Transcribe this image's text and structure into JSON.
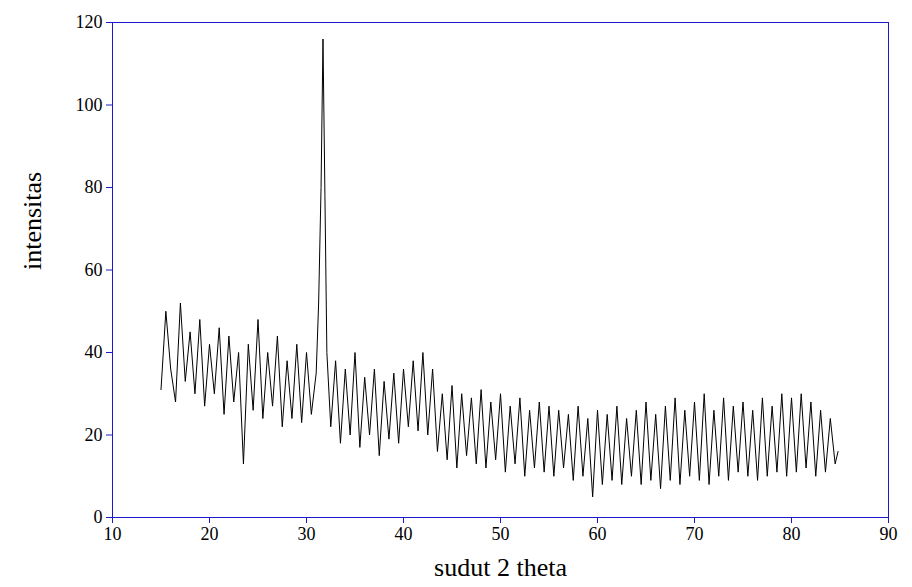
{
  "chart_data": {
    "type": "line",
    "xlabel": "sudut 2 theta",
    "ylabel": "intensitas",
    "xlim": [
      10,
      90
    ],
    "xticks": [
      10,
      20,
      30,
      40,
      50,
      60,
      70,
      80,
      90
    ],
    "ylim": [
      0,
      120
    ],
    "yticks": [
      0,
      20,
      40,
      60,
      80,
      100,
      120
    ],
    "grid": false,
    "x": [
      15,
      15.5,
      16,
      16.5,
      17,
      17.5,
      18,
      18.5,
      19,
      19.5,
      20,
      20.5,
      21,
      21.5,
      22,
      22.5,
      23,
      23.5,
      24,
      24.5,
      25,
      25.5,
      26,
      26.5,
      27,
      27.5,
      28,
      28.5,
      29,
      29.5,
      30,
      30.5,
      31,
      31.25,
      31.5,
      31.7,
      31.9,
      32.1,
      32.5,
      33,
      33.5,
      34,
      34.5,
      35,
      35.5,
      36,
      36.5,
      37,
      37.5,
      38,
      38.5,
      39,
      39.5,
      40,
      40.5,
      41,
      41.5,
      42,
      42.5,
      43,
      43.5,
      44,
      44.5,
      45,
      45.5,
      46,
      46.5,
      47,
      47.5,
      48,
      48.5,
      49,
      49.5,
      50,
      50.5,
      51,
      51.5,
      52,
      52.5,
      53,
      53.5,
      54,
      54.5,
      55,
      55.5,
      56,
      56.5,
      57,
      57.5,
      58,
      58.5,
      59,
      59.5,
      60,
      60.5,
      61,
      61.5,
      62,
      62.5,
      63,
      63.5,
      64,
      64.5,
      65,
      65.5,
      66,
      66.5,
      67,
      67.5,
      68,
      68.5,
      69,
      69.5,
      70,
      70.5,
      71,
      71.5,
      72,
      72.5,
      73,
      73.5,
      74,
      74.5,
      75,
      75.5,
      76,
      76.5,
      77,
      77.5,
      78,
      78.5,
      79,
      79.5,
      80,
      80.5,
      81,
      81.5,
      82,
      82.5,
      83,
      83.5,
      84,
      84.5,
      84.8
    ],
    "series": [
      {
        "color": "#000000",
        "values": [
          31,
          50,
          36,
          28,
          52,
          33,
          45,
          30,
          48,
          27,
          42,
          30,
          46,
          25,
          44,
          28,
          40,
          13,
          42,
          26,
          48,
          24,
          40,
          27,
          44,
          22,
          38,
          24,
          42,
          23,
          40,
          25,
          35,
          52,
          80,
          116,
          78,
          40,
          22,
          38,
          18,
          36,
          20,
          40,
          17,
          34,
          20,
          36,
          15,
          33,
          19,
          35,
          18,
          36,
          22,
          38,
          21,
          40,
          20,
          36,
          16,
          30,
          14,
          32,
          12,
          30,
          15,
          29,
          13,
          31,
          12,
          28,
          14,
          30,
          11,
          27,
          13,
          29,
          10,
          26,
          12,
          28,
          11,
          27,
          10,
          26,
          12,
          25,
          9,
          27,
          10,
          24,
          5,
          26,
          8,
          25,
          9,
          27,
          8,
          24,
          10,
          26,
          8,
          28,
          9,
          25,
          7,
          27,
          9,
          29,
          8,
          26,
          10,
          28,
          9,
          30,
          8,
          26,
          10,
          29,
          9,
          27,
          11,
          28,
          10,
          26,
          9,
          29,
          10,
          27,
          11,
          30,
          10,
          29,
          11,
          30,
          12,
          28,
          10,
          26,
          11,
          24,
          13,
          16
        ]
      }
    ]
  }
}
